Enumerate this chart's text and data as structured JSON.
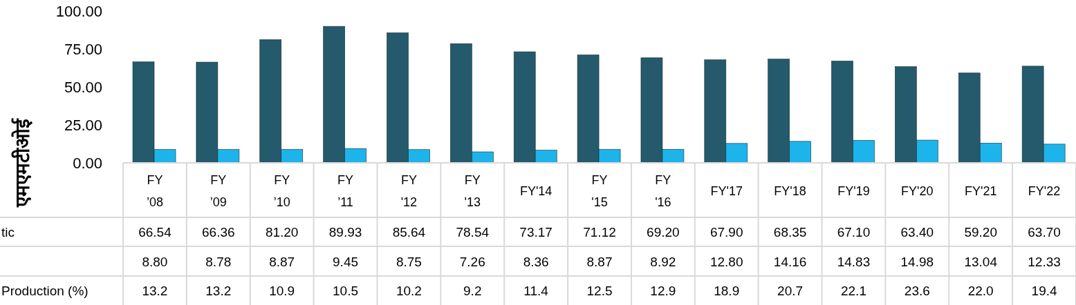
{
  "chart_data": {
    "type": "bar",
    "ylabel": "एमएमटीओई",
    "categories": [
      "FY\n’08",
      "FY\n’09",
      "FY\n’10",
      "FY\n’11",
      "FY\n'12",
      "FY\n'13",
      "FY'14",
      "FY\n'15",
      "FY\n'16",
      "FY'17",
      "FY'18",
      "FY'19",
      "FY'20",
      "FY'21",
      "FY'22"
    ],
    "series": [
      {
        "name": "tic",
        "color": "#245a6b",
        "values": [
          66.54,
          66.36,
          81.2,
          89.93,
          85.64,
          78.54,
          73.17,
          71.12,
          69.2,
          67.9,
          68.35,
          67.1,
          63.4,
          59.2,
          63.7
        ],
        "value_labels": [
          "66.54",
          "66.36",
          "81.20",
          "89.93",
          "85.64",
          "78.54",
          "73.17",
          "71.12",
          "69.20",
          "67.90",
          "68.35",
          "67.10",
          "63.40",
          "59.20",
          "63.70"
        ]
      },
      {
        "color": "#1cb4ea",
        "values": [
          8.8,
          8.78,
          8.87,
          9.45,
          8.75,
          7.26,
          8.36,
          8.87,
          8.92,
          12.8,
          14.16,
          14.83,
          14.98,
          13.04,
          12.33
        ],
        "value_labels": [
          "8.80",
          "8.78",
          "8.87",
          "9.45",
          "8.75",
          "7.26",
          "8.36",
          "8.87",
          "8.92",
          "12.80",
          "14.16",
          "14.83",
          "14.98",
          "13.04",
          "12.33"
        ]
      }
    ],
    "annotations": [
      "Production (%)",
      "13.2",
      "13.2",
      "10.9",
      "10.5",
      "10.2",
      "9.2",
      "11.4",
      "12.5",
      "12.9",
      "18.9",
      "20.7",
      "22.1",
      "23.6",
      "22.0",
      "19.4"
    ],
    "ylim": [
      0,
      100
    ],
    "yticks": [
      {
        "value": 0,
        "label": "0.00"
      },
      {
        "value": 25,
        "label": "25.00"
      },
      {
        "value": 50,
        "label": "50.00"
      },
      {
        "value": 75,
        "label": "75.00"
      },
      {
        "value": 100,
        "label": "100.00"
      }
    ],
    "grid": false,
    "legend": false
  }
}
